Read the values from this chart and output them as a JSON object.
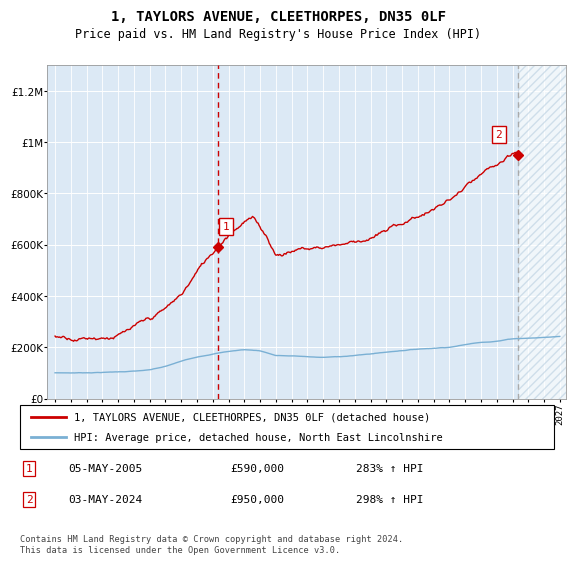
{
  "title1": "1, TAYLORS AVENUE, CLEETHORPES, DN35 0LF",
  "title2": "Price paid vs. HM Land Registry's House Price Index (HPI)",
  "background_color": "#dce9f5",
  "hatch_color": "#b8cfe0",
  "sale1_date": "05-MAY-2005",
  "sale1_price": 590000,
  "sale1_label": "283% ↑ HPI",
  "sale2_date": "03-MAY-2024",
  "sale2_price": 950000,
  "sale2_label": "298% ↑ HPI",
  "legend1": "1, TAYLORS AVENUE, CLEETHORPES, DN35 0LF (detached house)",
  "legend2": "HPI: Average price, detached house, North East Lincolnshire",
  "footer": "Contains HM Land Registry data © Crown copyright and database right 2024.\nThis data is licensed under the Open Government Licence v3.0.",
  "hpi_line_color": "#7ab0d4",
  "sale_line_color": "#cc0000",
  "sale2_vline_color": "#aaaaaa",
  "ylim_max": 1300000,
  "yticks": [
    0,
    200000,
    400000,
    600000,
    800000,
    1000000,
    1200000
  ],
  "ytick_labels": [
    "£0",
    "£200K",
    "£400K",
    "£600K",
    "£800K",
    "£1M",
    "£1.2M"
  ]
}
